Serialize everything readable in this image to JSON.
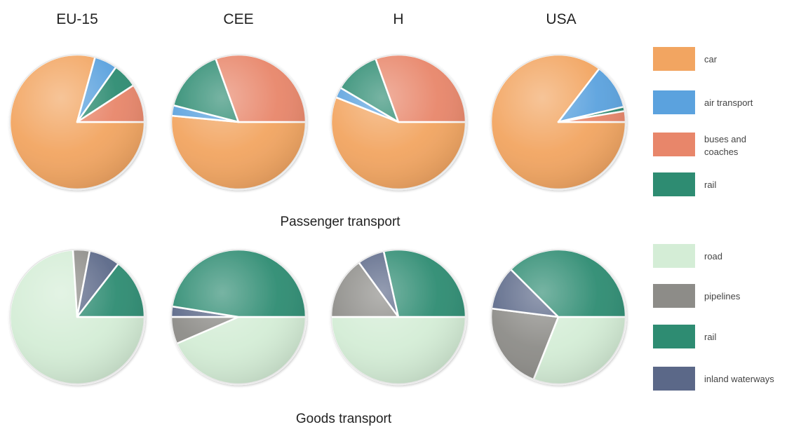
{
  "chart_data": {
    "type": "pie",
    "columns": [
      "EU-15",
      "CEE",
      "H",
      "USA"
    ],
    "legends": [
      {
        "group": "passenger",
        "entries": [
          {
            "key": "car",
            "label": "car",
            "color": "#F2A561"
          },
          {
            "key": "air",
            "label": "air transport",
            "color": "#5BA2DE"
          },
          {
            "key": "bus",
            "label": "buses and coaches",
            "color": "#E8866A"
          },
          {
            "key": "rail",
            "label": "rail",
            "color": "#2E8C72"
          }
        ]
      },
      {
        "group": "goods",
        "entries": [
          {
            "key": "road",
            "label": "road",
            "color": "#D4EDD6"
          },
          {
            "key": "pipelines",
            "label": "pipelines",
            "color": "#8D8C88"
          },
          {
            "key": "rail",
            "label": "rail",
            "color": "#2E8C72"
          },
          {
            "key": "inland",
            "label": "inland waterways",
            "color": "#5B6888"
          }
        ]
      }
    ],
    "charts": [
      {
        "section": "Passenger transport",
        "legend": "passenger",
        "pies": [
          {
            "title": "EU-15",
            "slices": [
              {
                "key": "car",
                "value": 79.3
              },
              {
                "key": "air",
                "value": 5.5
              },
              {
                "key": "rail",
                "value": 6.0
              },
              {
                "key": "bus",
                "value": 9.2
              }
            ]
          },
          {
            "title": "CEE",
            "slices": [
              {
                "key": "car",
                "value": 51.5
              },
              {
                "key": "air",
                "value": 2.5
              },
              {
                "key": "rail",
                "value": 15.5
              },
              {
                "key": "bus",
                "value": 30.5
              }
            ]
          },
          {
            "title": "H",
            "slices": [
              {
                "key": "car",
                "value": 56.0
              },
              {
                "key": "air",
                "value": 2.5
              },
              {
                "key": "rail",
                "value": 11.0
              },
              {
                "key": "bus",
                "value": 30.5
              }
            ]
          },
          {
            "title": "USA",
            "slices": [
              {
                "key": "car",
                "value": 82.0
              },
              {
                "key": "air",
                "value": 10.5
              },
              {
                "key": "rail",
                "value": 1.0
              },
              {
                "key": "bus",
                "value": 2.5
              }
            ]
          }
        ]
      },
      {
        "section": "Goods transport",
        "legend": "goods",
        "pies": [
          {
            "title": "EU-15",
            "slices": [
              {
                "key": "road",
                "value": 74.0
              },
              {
                "key": "pipelines",
                "value": 4.0
              },
              {
                "key": "inland",
                "value": 7.5
              },
              {
                "key": "rail",
                "value": 14.5
              }
            ]
          },
          {
            "title": "CEE",
            "slices": [
              {
                "key": "road",
                "value": 43.5
              },
              {
                "key": "pipelines",
                "value": 6.5
              },
              {
                "key": "inland",
                "value": 2.5
              },
              {
                "key": "rail",
                "value": 47.5
              }
            ]
          },
          {
            "title": "H",
            "slices": [
              {
                "key": "road",
                "value": 50.0
              },
              {
                "key": "pipelines",
                "value": 15.0
              },
              {
                "key": "inland",
                "value": 6.5
              },
              {
                "key": "rail",
                "value": 28.5
              }
            ]
          },
          {
            "title": "USA",
            "slices": [
              {
                "key": "road",
                "value": 31.0
              },
              {
                "key": "pipelines",
                "value": 21.0
              },
              {
                "key": "inland",
                "value": 10.5
              },
              {
                "key": "rail",
                "value": 37.5
              }
            ]
          }
        ]
      }
    ]
  }
}
